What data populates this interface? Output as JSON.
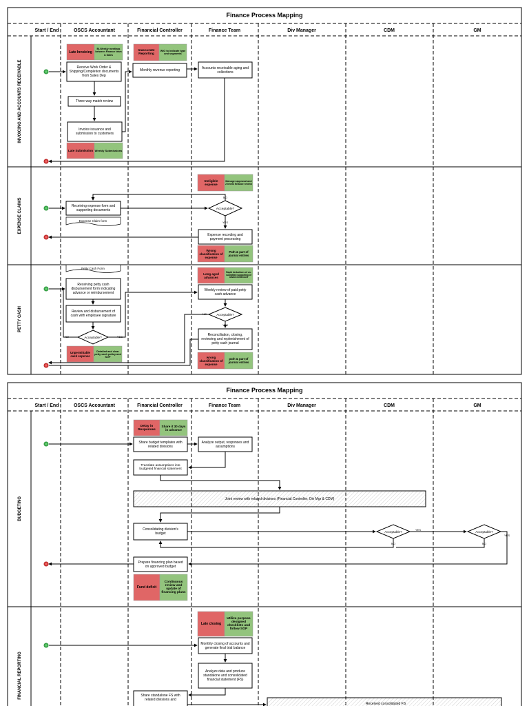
{
  "pages": [
    {
      "title": "Finance Process Mapping",
      "columns": [
        "Start / End",
        "OSCS Accountant",
        "Financial Controller",
        "Finance Team",
        "Div Manager",
        "CDM",
        "GM"
      ],
      "lanes": [
        "INVOICING AND ACCOUNTS RECEIVABLE",
        "EXPENSE CLAIMS",
        "PETTY CASH"
      ]
    },
    {
      "title": "Finance Process Mapping",
      "columns": [
        "Start / End",
        "OSCS Accountant",
        "Financial Controller",
        "Finance Team",
        "Div Manager",
        "CDM",
        "GM"
      ],
      "lanes": [
        "BUDGETING",
        "FINANCIAL REPORTING"
      ]
    }
  ],
  "invoicing": {
    "risk1": "Late Invoicing",
    "ctrl1": "Bi-Weekly meetings between Finance team & Sales",
    "step1": "Receive Work Order & Shipping/Completion documents from Sales Dep",
    "step2": "Three way match review",
    "step3": "Invoice issuance and submission to customers",
    "risk2": "Late Submission",
    "ctrl2": "Weekly Submissions",
    "risk3": "Inaccurate Reporting",
    "ctrl3": "WIO to indicate type and segments",
    "step4": "Monthly revenue reporting",
    "step5": "Accounts receivable aging and collections"
  },
  "expense": {
    "risk1": "Ineligible expense",
    "ctrl1": "Manager approval and 2 levels finance review",
    "step1": "Receiving expense form and supporting documents",
    "doc1": "Expense Claim form",
    "decision": "Acceptable?",
    "no": "NO",
    "yes": "YES",
    "step2": "Expense recording and payment processing",
    "risk2": "Wrong classification of expense",
    "ctrl2": "Path & part of journal entries"
  },
  "petty": {
    "doc1": "Petty Cash Form",
    "step1": "Receiving petty cash disbursement form indicating advance or reimbursement",
    "step2": "Review and disbursement of cash with employee signature",
    "decision1": "Acceptable?",
    "risk1": "Unpermittable cash expense",
    "ctrl1": "Detailed and clear petty cash policy and SOP",
    "risk2": "Long aged advances",
    "ctrl2": "Rapid deductions of un-submitted supporting of advanced amount",
    "step3": "Weekly review of paid petty cash advance",
    "decision2": "Acceptable?",
    "step4": "Reconciliation, closing, reviewing and replenishment of petty cash journal",
    "risk3": "wrong classification of expense",
    "ctrl3": "path & part of journal entries",
    "no": "NO",
    "yes": "YES"
  },
  "budgeting": {
    "risk1": "Delay in Responses",
    "ctrl1": "Share it 30 days in advance",
    "step1": "Share budget templates with related divisions",
    "step2": "Analyze output, responses and assumptions",
    "step3": "Translate assumptions into budgeted financial statement",
    "joint": "Joint review with related divisions (Financial Controller, Div Mgr & CDM)",
    "step4": "Consolidating division's budget",
    "decision1": "Acceptable?",
    "decision2": "Acceptable?",
    "yes": "YES",
    "no": "NO",
    "step5": "Prepare financing plan based on approved budget",
    "risk2": "Fund deficit",
    "ctrl2": "Continuous review and update of financing plans"
  },
  "reporting": {
    "risk1": "Late closing",
    "ctrl1": "Utilize purpose designed checklists and follow SOP",
    "step1": "Monthly closing of accounts and generate final trial balance",
    "step2": "Analyze data and produce standalone and consolidated financial statement (FS)",
    "step3": "Share standalone FS with related divisions and",
    "step4": "Received consolidated FS"
  },
  "colors": {
    "risk": "#e06666",
    "control": "#93c47d",
    "start": "#2e9e3e",
    "end": "#cc2222"
  }
}
